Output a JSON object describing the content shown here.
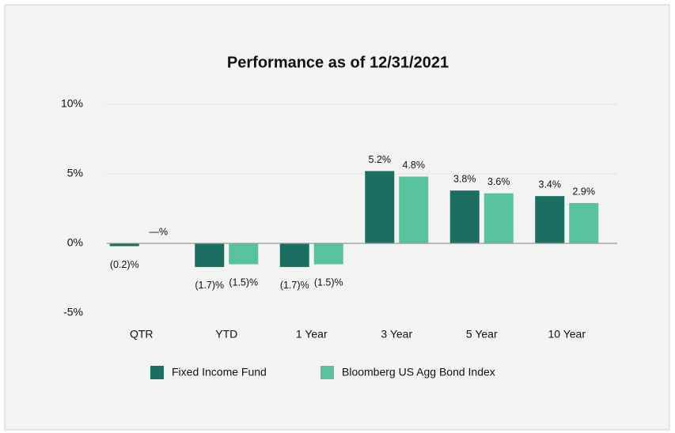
{
  "chart_data": {
    "type": "bar",
    "title": "Performance as of 12/31/2021",
    "categories": [
      "QTR",
      "YTD",
      "1 Year",
      "3 Year",
      "5 Year",
      "10 Year"
    ],
    "series": [
      {
        "name": "Fixed Income Fund",
        "color": "#1b6f61",
        "values": [
          -0.2,
          -1.7,
          -1.7,
          5.2,
          3.8,
          3.4
        ],
        "value_labels": [
          "(0.2)%",
          "(1.7)%",
          "(1.7)%",
          "5.2%",
          "3.8%",
          "3.4%"
        ]
      },
      {
        "name": "Bloomberg US Agg Bond Index",
        "color": "#58c19d",
        "values": [
          0,
          -1.5,
          -1.5,
          4.8,
          3.6,
          2.9
        ],
        "value_labels": [
          "—%",
          "(1.5)%",
          "(1.5)%",
          "4.8%",
          "3.6%",
          "2.9%"
        ]
      }
    ],
    "ylim": [
      -5,
      10
    ],
    "yticks": [
      {
        "value": -5,
        "label": "-5%"
      },
      {
        "value": 0,
        "label": "0%"
      },
      {
        "value": 5,
        "label": "5%"
      },
      {
        "value": 10,
        "label": "10%"
      }
    ],
    "grid": true
  }
}
